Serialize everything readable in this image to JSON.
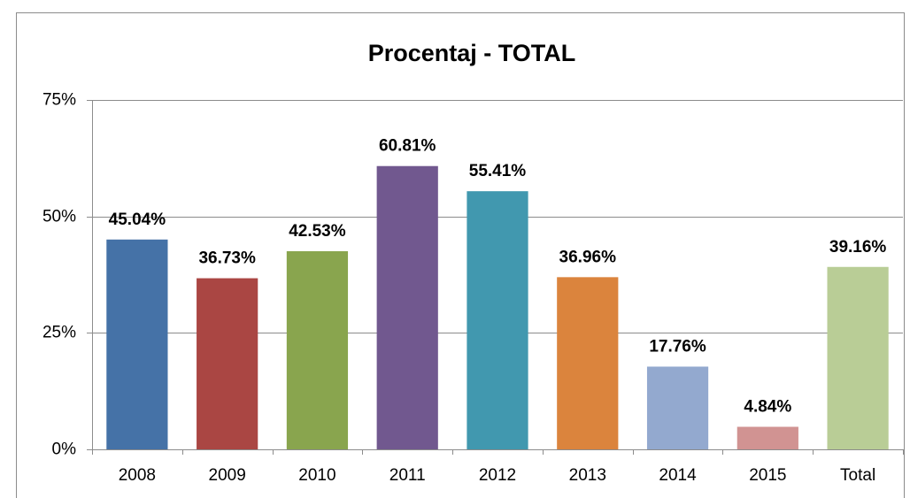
{
  "chart_data": {
    "type": "bar",
    "title": "Procentaj - TOTAL",
    "categories": [
      "2008",
      "2009",
      "2010",
      "2011",
      "2012",
      "2013",
      "2014",
      "2015",
      "Total"
    ],
    "values": [
      45.04,
      36.73,
      42.53,
      60.81,
      55.41,
      36.96,
      17.76,
      4.84,
      39.16
    ],
    "value_labels": [
      "45.04%",
      "36.73%",
      "42.53%",
      "60.81%",
      "55.41%",
      "36.96%",
      "17.76%",
      "4.84%",
      "39.16%"
    ],
    "colors": [
      "#4572a7",
      "#aa4643",
      "#89a54e",
      "#71588f",
      "#4198af",
      "#db843d",
      "#93a9cf",
      "#d19392",
      "#b9cd96"
    ],
    "ylim": [
      0,
      75
    ],
    "yticks": [
      {
        "value": 0,
        "label": "0%"
      },
      {
        "value": 25,
        "label": "25%"
      },
      {
        "value": 50,
        "label": "50%"
      },
      {
        "value": 75,
        "label": "75%"
      }
    ],
    "grid": true
  }
}
